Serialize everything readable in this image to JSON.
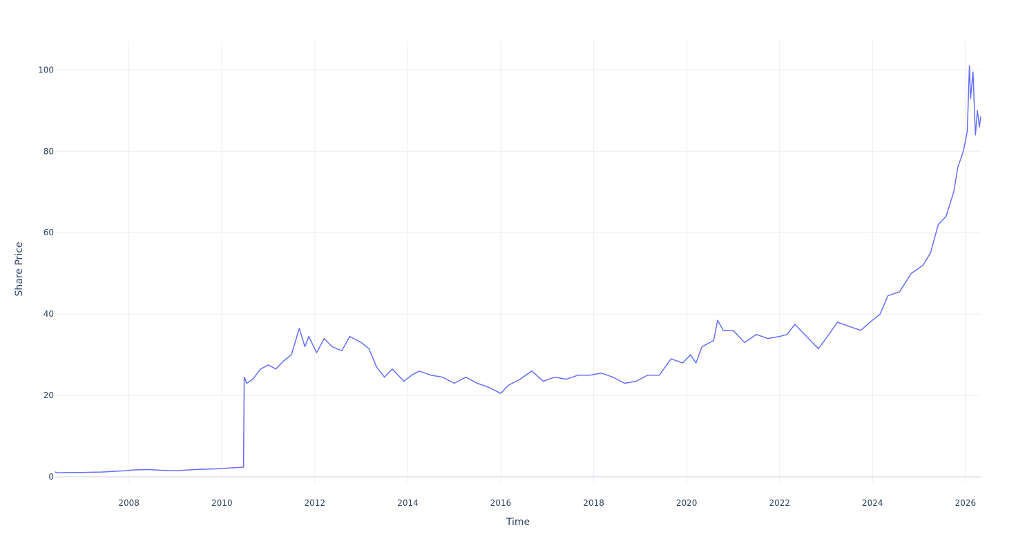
{
  "chart_data": {
    "type": "line",
    "title": "",
    "xlabel": "Time",
    "ylabel": "Share Price",
    "xlim": [
      "2006-06-01",
      "2026-05-01"
    ],
    "ylim": [
      -1.5,
      107
    ],
    "x_ticks": [
      "2008",
      "2010",
      "2012",
      "2014",
      "2016",
      "2018",
      "2020",
      "2022",
      "2024",
      "2026"
    ],
    "y_ticks": [
      0,
      20,
      40,
      60,
      80,
      100
    ],
    "grid": true,
    "legend": "none",
    "series": [
      {
        "color": "#636efa",
        "points": [
          [
            "2006-06-01",
            1.2
          ],
          [
            "2006-07-01",
            1.0
          ],
          [
            "2006-09-01",
            1.1
          ],
          [
            "2007-01-01",
            1.1
          ],
          [
            "2007-06-01",
            1.2
          ],
          [
            "2007-12-01",
            1.5
          ],
          [
            "2008-02-01",
            1.7
          ],
          [
            "2008-06-01",
            1.8
          ],
          [
            "2008-10-01",
            1.6
          ],
          [
            "2009-01-01",
            1.5
          ],
          [
            "2009-06-01",
            1.8
          ],
          [
            "2009-12-01",
            2.0
          ],
          [
            "2010-03-01",
            2.2
          ],
          [
            "2010-06-20",
            2.4
          ],
          [
            "2010-06-25",
            24.5
          ],
          [
            "2010-07-15",
            23.0
          ],
          [
            "2010-09-01",
            24.0
          ],
          [
            "2010-11-01",
            26.5
          ],
          [
            "2011-01-01",
            27.5
          ],
          [
            "2011-03-01",
            26.5
          ],
          [
            "2011-05-01",
            28.5
          ],
          [
            "2011-07-01",
            30.0
          ],
          [
            "2011-09-01",
            36.5
          ],
          [
            "2011-10-15",
            32.0
          ],
          [
            "2011-11-15",
            34.5
          ],
          [
            "2012-01-15",
            30.5
          ],
          [
            "2012-03-15",
            34.0
          ],
          [
            "2012-05-15",
            32.0
          ],
          [
            "2012-08-01",
            31.0
          ],
          [
            "2012-10-01",
            34.5
          ],
          [
            "2013-01-01",
            33.0
          ],
          [
            "2013-03-01",
            31.5
          ],
          [
            "2013-05-01",
            27.0
          ],
          [
            "2013-07-01",
            24.5
          ],
          [
            "2013-09-01",
            26.5
          ],
          [
            "2013-12-01",
            23.5
          ],
          [
            "2014-02-01",
            25.0
          ],
          [
            "2014-04-01",
            26.0
          ],
          [
            "2014-07-01",
            25.0
          ],
          [
            "2014-10-01",
            24.5
          ],
          [
            "2015-01-01",
            23.0
          ],
          [
            "2015-04-01",
            24.5
          ],
          [
            "2015-07-01",
            23.0
          ],
          [
            "2015-10-01",
            22.0
          ],
          [
            "2016-01-01",
            20.5
          ],
          [
            "2016-03-01",
            22.5
          ],
          [
            "2016-06-01",
            24.0
          ],
          [
            "2016-09-01",
            26.0
          ],
          [
            "2016-12-01",
            23.5
          ],
          [
            "2017-03-01",
            24.5
          ],
          [
            "2017-06-01",
            24.0
          ],
          [
            "2017-09-01",
            25.0
          ],
          [
            "2017-12-01",
            25.0
          ],
          [
            "2018-03-01",
            25.5
          ],
          [
            "2018-06-01",
            24.5
          ],
          [
            "2018-09-01",
            23.0
          ],
          [
            "2018-12-01",
            23.5
          ],
          [
            "2019-03-01",
            25.0
          ],
          [
            "2019-06-01",
            25.0
          ],
          [
            "2019-09-01",
            29.0
          ],
          [
            "2019-12-01",
            28.0
          ],
          [
            "2020-02-01",
            30.0
          ],
          [
            "2020-03-15",
            28.0
          ],
          [
            "2020-05-01",
            32.0
          ],
          [
            "2020-08-01",
            33.5
          ],
          [
            "2020-09-01",
            38.5
          ],
          [
            "2020-10-15",
            36.0
          ],
          [
            "2021-01-01",
            36.0
          ],
          [
            "2021-04-01",
            33.0
          ],
          [
            "2021-07-01",
            35.0
          ],
          [
            "2021-10-01",
            34.0
          ],
          [
            "2022-01-01",
            34.5
          ],
          [
            "2022-03-01",
            35.0
          ],
          [
            "2022-05-01",
            37.5
          ],
          [
            "2022-08-01",
            34.5
          ],
          [
            "2022-11-01",
            31.5
          ],
          [
            "2023-01-01",
            34.0
          ],
          [
            "2023-04-01",
            38.0
          ],
          [
            "2023-07-01",
            37.0
          ],
          [
            "2023-10-01",
            36.0
          ],
          [
            "2024-01-01",
            38.5
          ],
          [
            "2024-03-01",
            40.0
          ],
          [
            "2024-05-01",
            44.5
          ],
          [
            "2024-08-01",
            45.5
          ],
          [
            "2024-11-01",
            50.0
          ],
          [
            "2025-02-01",
            52.0
          ],
          [
            "2025-04-01",
            55.0
          ],
          [
            "2025-06-01",
            62.0
          ],
          [
            "2025-08-01",
            64.0
          ],
          [
            "2025-10-01",
            70.0
          ],
          [
            "2025-11-01",
            76.0
          ],
          [
            "2025-12-15",
            80.0
          ],
          [
            "2026-01-15",
            85.0
          ],
          [
            "2026-02-01",
            101.0
          ],
          [
            "2026-02-10",
            93.0
          ],
          [
            "2026-03-01",
            99.5
          ],
          [
            "2026-03-20",
            84.0
          ],
          [
            "2026-04-05",
            90.0
          ],
          [
            "2026-04-20",
            86.0
          ],
          [
            "2026-05-01",
            88.5
          ]
        ]
      }
    ]
  }
}
